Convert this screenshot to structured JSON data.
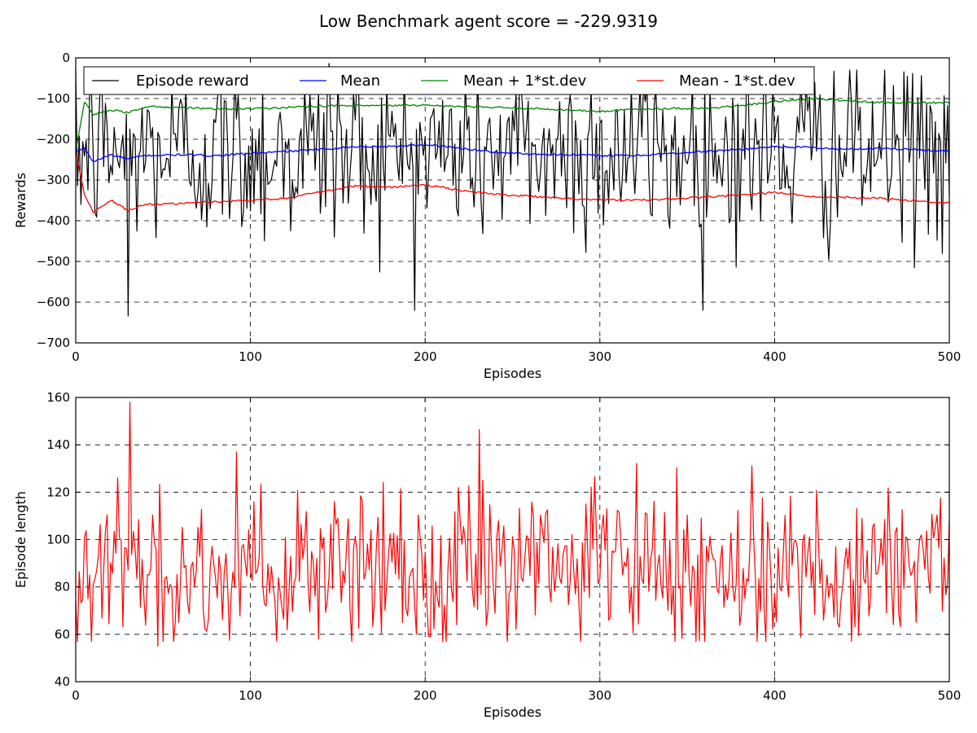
{
  "figure_title": "Low Benchmark agent score = -229.9319",
  "chart_data": [
    {
      "type": "line",
      "title": "",
      "xlabel": "Episodes",
      "ylabel": "Rewards",
      "xlim": [
        0,
        500
      ],
      "ylim": [
        -700,
        0
      ],
      "xticks": [
        "0",
        "100",
        "200",
        "300",
        "400",
        "500"
      ],
      "yticks": [
        "0",
        "−100",
        "−200",
        "−300",
        "−400",
        "−500",
        "−600",
        "−700"
      ],
      "grid": true,
      "legend_position": "top",
      "series": [
        {
          "name": "Episode reward",
          "color": "#000000",
          "approx_mean": -230,
          "approx_std": 115,
          "min_point": [
            30,
            -634
          ],
          "max_point": [
            145,
            -14
          ]
        },
        {
          "name": "Mean",
          "color": "#0000ff",
          "x": [
            0,
            5,
            10,
            20,
            30,
            40,
            60,
            80,
            100,
            120,
            140,
            160,
            180,
            200,
            220,
            240,
            260,
            280,
            300,
            320,
            340,
            360,
            380,
            400,
            420,
            440,
            460,
            480,
            500
          ],
          "y": [
            -230,
            -222,
            -255,
            -238,
            -248,
            -240,
            -238,
            -240,
            -235,
            -230,
            -225,
            -218,
            -218,
            -213,
            -222,
            -232,
            -236,
            -238,
            -240,
            -240,
            -235,
            -230,
            -225,
            -218,
            -220,
            -225,
            -222,
            -225,
            -230
          ]
        },
        {
          "name": "Mean + 1*st.dev",
          "color": "#008000",
          "x": [
            0,
            5,
            10,
            20,
            30,
            40,
            60,
            80,
            100,
            120,
            140,
            160,
            180,
            200,
            220,
            240,
            260,
            280,
            300,
            320,
            340,
            360,
            380,
            400,
            420,
            440,
            460,
            480,
            500
          ],
          "y": [
            -230,
            -108,
            -140,
            -128,
            -135,
            -120,
            -122,
            -126,
            -125,
            -122,
            -118,
            -118,
            -117,
            -116,
            -120,
            -122,
            -124,
            -128,
            -132,
            -126,
            -124,
            -124,
            -118,
            -108,
            -100,
            -105,
            -110,
            -110,
            -110
          ]
        },
        {
          "name": "Mean - 1*st.dev",
          "color": "#ff0000",
          "x": [
            0,
            5,
            10,
            20,
            30,
            40,
            60,
            80,
            100,
            120,
            140,
            160,
            180,
            200,
            220,
            240,
            260,
            280,
            300,
            320,
            340,
            360,
            380,
            400,
            420,
            440,
            460,
            480,
            500
          ],
          "y": [
            -230,
            -335,
            -380,
            -350,
            -375,
            -360,
            -358,
            -353,
            -350,
            -345,
            -330,
            -315,
            -318,
            -312,
            -325,
            -335,
            -340,
            -345,
            -348,
            -350,
            -347,
            -342,
            -338,
            -330,
            -340,
            -343,
            -345,
            -352,
            -355
          ]
        }
      ]
    },
    {
      "type": "line",
      "title": "",
      "xlabel": "Episodes",
      "ylabel": "Episode length",
      "xlim": [
        0,
        500
      ],
      "ylim": [
        40,
        160
      ],
      "xticks": [
        "0",
        "100",
        "200",
        "300",
        "400",
        "500"
      ],
      "yticks": [
        "40",
        "60",
        "80",
        "100",
        "120",
        "140",
        "160"
      ],
      "grid": true,
      "series": [
        {
          "name": "",
          "color": "#ff0000",
          "approx_mean": 88,
          "approx_std": 18,
          "min_point": [
            47,
            55
          ],
          "max_point": [
            31,
            158
          ]
        }
      ]
    }
  ]
}
